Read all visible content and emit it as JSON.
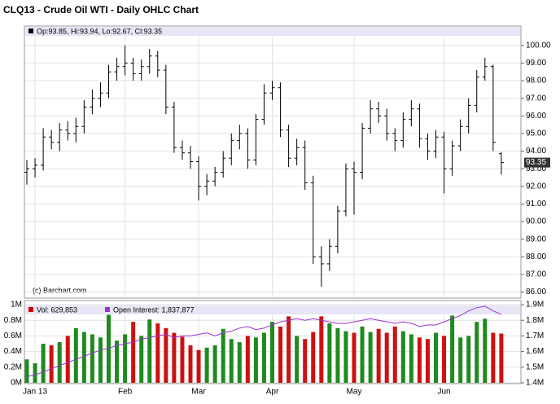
{
  "chart_data": [
    {
      "type": "ohlc",
      "title": "CLQ13 - Crude Oil WTI - Daily OHLC Chart",
      "legend_text": "Op:93.85, Hi:93.94, Lo:92.67, Cl:93.35",
      "last_label": "93.35",
      "watermark": "(c) Barchart.com",
      "color": "#000000",
      "open": [
        92.8,
        93.0,
        93.2,
        94.8,
        94.5,
        95.2,
        95.0,
        95.4,
        96.5,
        97.0,
        97.3,
        98.5,
        98.8,
        99.0,
        98.4,
        98.8,
        99.4,
        98.6,
        96.5,
        94.2,
        93.9,
        93.4,
        92.0,
        92.3,
        92.8,
        93.6,
        94.6,
        95.0,
        93.5,
        95.8,
        97.3,
        97.6,
        95.2,
        93.6,
        94.2,
        92.2,
        88.0,
        87.6,
        88.6,
        90.6,
        93.0,
        92.8,
        95.3,
        96.4,
        96.0,
        95.0,
        94.6,
        95.8,
        96.4,
        94.7,
        94.0,
        94.8,
        93.0,
        94.3,
        95.4,
        96.6,
        98.2,
        98.8,
        93.85
      ],
      "high": [
        93.5,
        93.6,
        95.3,
        95.2,
        95.6,
        95.7,
        95.9,
        96.9,
        97.5,
        97.9,
        98.9,
        99.3,
        100.0,
        99.3,
        99.2,
        99.8,
        99.7,
        98.9,
        96.8,
        94.6,
        94.3,
        93.7,
        92.7,
        93.1,
        94.0,
        95.0,
        95.5,
        95.3,
        96.1,
        97.8,
        98.0,
        97.9,
        95.5,
        94.7,
        94.6,
        92.6,
        88.6,
        89.0,
        90.9,
        93.3,
        93.4,
        95.6,
        96.9,
        96.8,
        96.4,
        95.3,
        96.2,
        96.9,
        96.7,
        95.0,
        95.2,
        95.1,
        94.6,
        95.8,
        97.0,
        98.6,
        99.3,
        98.9,
        93.94
      ],
      "low": [
        92.1,
        92.5,
        92.9,
        94.1,
        94.0,
        94.6,
        94.5,
        95.0,
        96.1,
        96.5,
        97.0,
        98.0,
        98.3,
        98.0,
        98.0,
        98.4,
        98.2,
        96.1,
        93.9,
        93.5,
        93.0,
        91.2,
        91.5,
        92.0,
        92.5,
        93.2,
        94.1,
        93.0,
        93.2,
        95.5,
        96.9,
        94.8,
        93.1,
        93.2,
        91.8,
        87.6,
        86.3,
        87.2,
        88.2,
        90.3,
        90.4,
        92.4,
        95.0,
        95.6,
        94.6,
        94.0,
        94.2,
        95.4,
        94.2,
        93.5,
        93.6,
        91.6,
        92.6,
        94.0,
        95.0,
        96.2,
        98.0,
        94.0,
        92.67
      ],
      "close": [
        93.0,
        93.2,
        94.8,
        94.5,
        95.2,
        95.0,
        95.4,
        96.5,
        97.0,
        97.3,
        98.5,
        98.8,
        99.0,
        98.4,
        98.8,
        99.4,
        98.6,
        96.5,
        94.2,
        93.9,
        93.4,
        92.0,
        92.3,
        92.8,
        93.6,
        94.6,
        95.0,
        93.5,
        95.8,
        97.3,
        97.6,
        95.2,
        93.6,
        94.2,
        92.2,
        88.0,
        87.6,
        88.6,
        90.6,
        93.0,
        92.8,
        95.3,
        96.4,
        96.0,
        95.0,
        94.6,
        95.8,
        96.4,
        94.7,
        94.0,
        94.8,
        93.0,
        94.3,
        95.4,
        96.6,
        98.2,
        98.8,
        94.5,
        93.35
      ],
      "ylim": [
        85.7,
        100.5
      ],
      "yticks": [
        {
          "value": 86,
          "label": "86.00"
        },
        {
          "value": 87,
          "label": "87.00"
        },
        {
          "value": 88,
          "label": "88.00"
        },
        {
          "value": 89,
          "label": "89.00"
        },
        {
          "value": 90,
          "label": "90.00"
        },
        {
          "value": 91,
          "label": "91.00"
        },
        {
          "value": 92,
          "label": "92.00"
        },
        {
          "value": 93,
          "label": "93.00"
        },
        {
          "value": 94,
          "label": "94.00"
        },
        {
          "value": 95,
          "label": "95.00"
        },
        {
          "value": 96,
          "label": "96.00"
        },
        {
          "value": 97,
          "label": "97.00"
        },
        {
          "value": 98,
          "label": "98.00"
        },
        {
          "value": 99,
          "label": "99.00"
        },
        {
          "value": 100,
          "label": "100.00"
        }
      ],
      "grid": true
    },
    {
      "type": "bar",
      "categories": [
        null,
        "Jan 13",
        null,
        null,
        null,
        null,
        null,
        null,
        null,
        null,
        null,
        null,
        "Feb",
        null,
        null,
        null,
        null,
        null,
        null,
        null,
        null,
        "Mar",
        null,
        null,
        null,
        null,
        null,
        null,
        null,
        null,
        "Apr",
        null,
        null,
        null,
        null,
        null,
        null,
        null,
        null,
        null,
        "May",
        null,
        null,
        null,
        null,
        null,
        null,
        null,
        null,
        null,
        null,
        "Jun",
        null,
        null,
        null,
        null,
        null,
        null,
        null
      ],
      "series": [
        {
          "name": "Vol: 629,853",
          "color": "#cc0000",
          "up_color": "#1f8a1f",
          "down_color": "#cc1111",
          "values": [
            300000,
            250000,
            500000,
            480000,
            520000,
            600000,
            700000,
            650000,
            620000,
            580000,
            870000,
            540000,
            620000,
            780000,
            600000,
            810000,
            760000,
            700000,
            640000,
            590000,
            480000,
            420000,
            450000,
            480000,
            690000,
            560000,
            520000,
            600000,
            580000,
            640000,
            780000,
            720000,
            850000,
            600000,
            560000,
            650000,
            850000,
            760000,
            700000,
            660000,
            640000,
            720000,
            650000,
            690000,
            640000,
            720000,
            660000,
            620000,
            580000,
            560000,
            640000,
            600000,
            860000,
            580000,
            600000,
            780000,
            820000,
            640000,
            629853
          ]
        },
        {
          "name": "Open Interest: 1,837,877",
          "color": "#9933cc",
          "axis": "y2",
          "values": [
            1440000,
            1450000,
            1470000,
            1490000,
            1510000,
            1530000,
            1550000,
            1570000,
            1590000,
            1610000,
            1620000,
            1640000,
            1650000,
            1660000,
            1680000,
            1690000,
            1700000,
            1710000,
            1690000,
            1700000,
            1700000,
            1710000,
            1720000,
            1700000,
            1720000,
            1730000,
            1750000,
            1760000,
            1740000,
            1750000,
            1770000,
            1790000,
            1800000,
            1810000,
            1800000,
            1810000,
            1800000,
            1790000,
            1780000,
            1780000,
            1790000,
            1800000,
            1810000,
            1800000,
            1790000,
            1780000,
            1790000,
            1780000,
            1760000,
            1770000,
            1770000,
            1790000,
            1810000,
            1830000,
            1860000,
            1880000,
            1890000,
            1860000,
            1837877
          ]
        }
      ],
      "ylim": [
        0,
        1000000
      ],
      "yticks": [
        {
          "value": 0,
          "label": "0M"
        },
        {
          "value": 200000,
          "label": "0.2M"
        },
        {
          "value": 400000,
          "label": "0.4M"
        },
        {
          "value": 600000,
          "label": "0.6M"
        },
        {
          "value": 800000,
          "label": "0.8M"
        },
        {
          "value": 1000000,
          "label": "1M"
        }
      ],
      "y2lim": [
        1400000,
        1900000
      ],
      "y2ticks": [
        {
          "value": 1400000,
          "label": "1.4M"
        },
        {
          "value": 1500000,
          "label": "1.5M"
        },
        {
          "value": 1600000,
          "label": "1.6M"
        },
        {
          "value": 1700000,
          "label": "1.7M"
        },
        {
          "value": 1800000,
          "label": "1.8M"
        },
        {
          "value": 1900000,
          "label": "1.9M"
        }
      ],
      "grid": true
    }
  ]
}
